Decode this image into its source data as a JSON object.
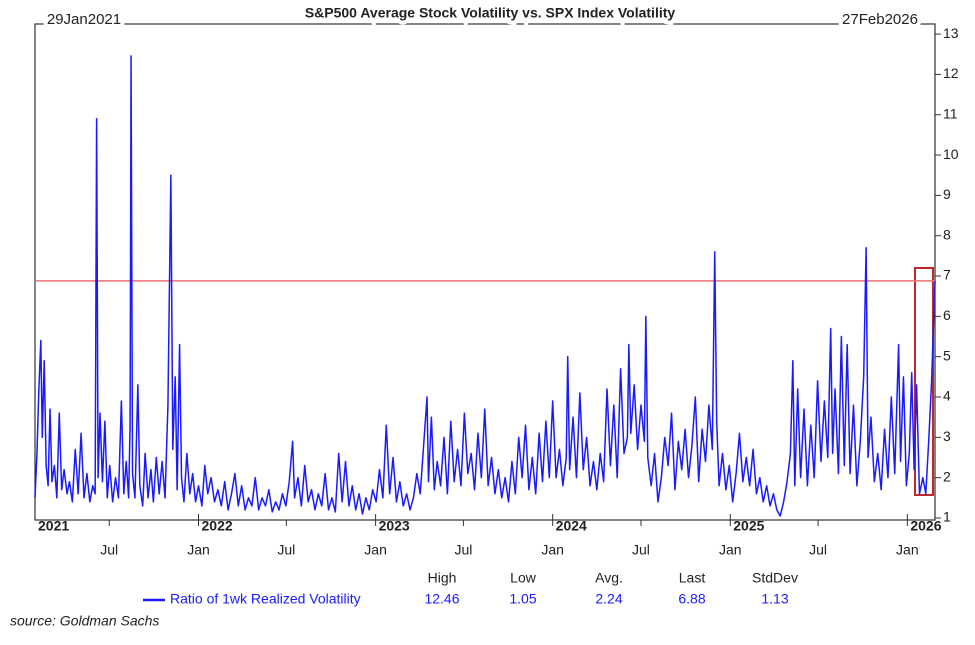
{
  "chart_data": {
    "type": "line",
    "title": "S&P500 Average Stock Volatility vs. SPX Index Volatility",
    "start_label": "29Jan2021",
    "end_label": "27Feb2026",
    "source": "source: Goldman Sachs",
    "xlim": [
      "2021-01-29",
      "2026-02-27"
    ],
    "ylim": [
      0.95,
      13.25
    ],
    "yticks": [
      1,
      2,
      3,
      4,
      5,
      6,
      7,
      8,
      9,
      10,
      11,
      12,
      13
    ],
    "xticks": [
      {
        "value": "2021-07-01",
        "label": "Jul"
      },
      {
        "value": "2022-01-01",
        "label": "Jan"
      },
      {
        "value": "2022-07-01",
        "label": "Jul"
      },
      {
        "value": "2023-01-01",
        "label": "Jan"
      },
      {
        "value": "2023-07-01",
        "label": "Jul"
      },
      {
        "value": "2024-01-01",
        "label": "Jan"
      },
      {
        "value": "2024-07-01",
        "label": "Jul"
      },
      {
        "value": "2025-01-01",
        "label": "Jan"
      },
      {
        "value": "2025-07-01",
        "label": "Jul"
      },
      {
        "value": "2026-01-01",
        "label": "Jan"
      }
    ],
    "year_labels": [
      {
        "value": "2021-01-29",
        "label": "2021"
      },
      {
        "value": "2022-01-01",
        "label": "2022"
      },
      {
        "value": "2023-01-01",
        "label": "2023"
      },
      {
        "value": "2024-01-01",
        "label": "2024"
      },
      {
        "value": "2025-01-01",
        "label": "2025"
      },
      {
        "value": "2026-01-01",
        "label": "2026"
      }
    ],
    "stats": {
      "headers": [
        "High",
        "Low",
        "Avg.",
        "Last",
        "StdDev"
      ],
      "values": [
        12.46,
        1.05,
        2.24,
        6.88,
        1.13
      ]
    },
    "reference_line_color": "#f07070",
    "x": [
      "2021-01-29",
      "2021-02-02",
      "2021-02-06",
      "2021-02-10",
      "2021-02-13",
      "2021-02-17",
      "2021-02-21",
      "2021-02-25",
      "2021-03-01",
      "2021-03-05",
      "2021-03-10",
      "2021-03-15",
      "2021-03-20",
      "2021-03-25",
      "2021-03-30",
      "2021-04-05",
      "2021-04-10",
      "2021-04-16",
      "2021-04-22",
      "2021-04-28",
      "2021-05-04",
      "2021-05-10",
      "2021-05-16",
      "2021-05-22",
      "2021-05-28",
      "2021-06-02",
      "2021-06-05",
      "2021-06-08",
      "2021-06-12",
      "2021-06-17",
      "2021-06-22",
      "2021-06-27",
      "2021-07-02",
      "2021-07-08",
      "2021-07-14",
      "2021-07-20",
      "2021-07-26",
      "2021-07-31",
      "2021-08-05",
      "2021-08-10",
      "2021-08-13",
      "2021-08-15",
      "2021-08-18",
      "2021-08-23",
      "2021-08-29",
      "2021-09-02",
      "2021-09-08",
      "2021-09-13",
      "2021-09-19",
      "2021-09-25",
      "2021-09-30",
      "2021-10-06",
      "2021-10-12",
      "2021-10-18",
      "2021-10-24",
      "2021-10-30",
      "2021-11-05",
      "2021-11-09",
      "2021-11-14",
      "2021-11-18",
      "2021-11-23",
      "2021-11-27",
      "2021-12-02",
      "2021-12-08",
      "2021-12-14",
      "2021-12-20",
      "2021-12-26",
      "2022-01-01",
      "2022-01-08",
      "2022-01-14",
      "2022-01-20",
      "2022-01-27",
      "2022-02-03",
      "2022-02-10",
      "2022-02-17",
      "2022-02-24",
      "2022-03-03",
      "2022-03-10",
      "2022-03-17",
      "2022-03-24",
      "2022-03-31",
      "2022-04-07",
      "2022-04-14",
      "2022-04-21",
      "2022-04-28",
      "2022-05-05",
      "2022-05-12",
      "2022-05-19",
      "2022-05-26",
      "2022-06-02",
      "2022-06-09",
      "2022-06-16",
      "2022-06-23",
      "2022-06-30",
      "2022-07-07",
      "2022-07-14",
      "2022-07-18",
      "2022-07-25",
      "2022-08-01",
      "2022-08-08",
      "2022-08-15",
      "2022-08-22",
      "2022-08-29",
      "2022-09-05",
      "2022-09-12",
      "2022-09-19",
      "2022-09-26",
      "2022-10-03",
      "2022-10-10",
      "2022-10-17",
      "2022-10-24",
      "2022-10-31",
      "2022-11-07",
      "2022-11-14",
      "2022-11-21",
      "2022-11-28",
      "2022-12-05",
      "2022-12-12",
      "2022-12-19",
      "2022-12-26",
      "2023-01-02",
      "2023-01-09",
      "2023-01-16",
      "2023-01-23",
      "2023-01-30",
      "2023-02-06",
      "2023-02-13",
      "2023-02-20",
      "2023-02-27",
      "2023-03-06",
      "2023-03-13",
      "2023-03-20",
      "2023-03-27",
      "2023-04-03",
      "2023-04-10",
      "2023-04-17",
      "2023-04-20",
      "2023-04-26",
      "2023-05-02",
      "2023-05-08",
      "2023-05-15",
      "2023-05-22",
      "2023-05-29",
      "2023-06-05",
      "2023-06-12",
      "2023-06-19",
      "2023-06-26",
      "2023-07-03",
      "2023-07-10",
      "2023-07-17",
      "2023-07-24",
      "2023-07-31",
      "2023-08-07",
      "2023-08-14",
      "2023-08-21",
      "2023-08-28",
      "2023-09-04",
      "2023-09-11",
      "2023-09-18",
      "2023-09-25",
      "2023-10-02",
      "2023-10-09",
      "2023-10-16",
      "2023-10-23",
      "2023-10-30",
      "2023-11-06",
      "2023-11-13",
      "2023-11-20",
      "2023-11-27",
      "2023-12-04",
      "2023-12-11",
      "2023-12-18",
      "2023-12-25",
      "2024-01-01",
      "2024-01-08",
      "2024-01-15",
      "2024-01-22",
      "2024-01-29",
      "2024-02-01",
      "2024-02-05",
      "2024-02-12",
      "2024-02-19",
      "2024-02-26",
      "2024-03-04",
      "2024-03-11",
      "2024-03-18",
      "2024-03-25",
      "2024-04-01",
      "2024-04-08",
      "2024-04-15",
      "2024-04-22",
      "2024-04-29",
      "2024-05-06",
      "2024-05-13",
      "2024-05-20",
      "2024-05-27",
      "2024-06-03",
      "2024-06-06",
      "2024-06-10",
      "2024-06-17",
      "2024-06-24",
      "2024-07-01",
      "2024-07-08",
      "2024-07-11",
      "2024-07-15",
      "2024-07-22",
      "2024-07-29",
      "2024-08-05",
      "2024-08-12",
      "2024-08-19",
      "2024-08-26",
      "2024-09-02",
      "2024-09-09",
      "2024-09-16",
      "2024-09-23",
      "2024-09-30",
      "2024-10-07",
      "2024-10-14",
      "2024-10-21",
      "2024-10-28",
      "2024-11-04",
      "2024-11-11",
      "2024-11-18",
      "2024-11-25",
      "2024-11-30",
      "2024-12-04",
      "2024-12-09",
      "2024-12-16",
      "2024-12-23",
      "2024-12-30",
      "2025-01-06",
      "2025-01-13",
      "2025-01-20",
      "2025-01-27",
      "2025-02-03",
      "2025-02-10",
      "2025-02-17",
      "2025-02-24",
      "2025-03-03",
      "2025-03-10",
      "2025-03-17",
      "2025-03-24",
      "2025-03-31",
      "2025-04-07",
      "2025-04-14",
      "2025-04-21",
      "2025-04-28",
      "2025-05-05",
      "2025-05-10",
      "2025-05-14",
      "2025-05-20",
      "2025-05-26",
      "2025-06-02",
      "2025-06-09",
      "2025-06-16",
      "2025-06-23",
      "2025-06-30",
      "2025-07-07",
      "2025-07-14",
      "2025-07-21",
      "2025-07-27",
      "2025-07-31",
      "2025-08-05",
      "2025-08-12",
      "2025-08-18",
      "2025-08-24",
      "2025-08-30",
      "2025-09-05",
      "2025-09-12",
      "2025-09-19",
      "2025-09-26",
      "2025-10-03",
      "2025-10-08",
      "2025-10-12",
      "2025-10-18",
      "2025-10-25",
      "2025-11-01",
      "2025-11-08",
      "2025-11-15",
      "2025-11-22",
      "2025-11-29",
      "2025-12-06",
      "2025-12-14",
      "2025-12-18",
      "2025-12-24",
      "2025-12-30",
      "2026-01-05",
      "2026-01-10",
      "2026-01-15",
      "2026-01-20",
      "2026-01-26",
      "2026-02-02",
      "2026-02-08",
      "2026-02-14",
      "2026-02-20",
      "2026-02-27"
    ],
    "series": [
      {
        "name": "Ratio of 1wk Realized Volatility",
        "color": "#1a1aff",
        "values": [
          1.5,
          2.6,
          4.2,
          5.4,
          3,
          4.9,
          2.3,
          1.8,
          3.7,
          1.9,
          2.3,
          1.5,
          3.6,
          1.7,
          2.2,
          1.6,
          1.9,
          1.4,
          2.7,
          1.6,
          3.1,
          1.5,
          2.1,
          1.4,
          1.8,
          1.6,
          10.9,
          2,
          3.6,
          1.9,
          3.4,
          1.5,
          2.3,
          1.4,
          2,
          1.5,
          3.9,
          1.6,
          2.4,
          1.5,
          3.3,
          12.46,
          2.1,
          1.5,
          4.3,
          1.8,
          1.3,
          2.6,
          1.5,
          2.2,
          1.4,
          2.5,
          1.6,
          2.4,
          1.5,
          3.8,
          9.5,
          2.7,
          4.5,
          1.7,
          5.3,
          2,
          1.4,
          2.6,
          1.6,
          2.1,
          1.4,
          1.8,
          1.3,
          2.3,
          1.6,
          2,
          1.4,
          1.7,
          1.3,
          1.9,
          1.2,
          1.6,
          2.1,
          1.3,
          1.8,
          1.2,
          1.5,
          1.3,
          2,
          1.2,
          1.5,
          1.3,
          1.7,
          1.15,
          1.4,
          1.2,
          1.6,
          1.3,
          1.9,
          2.9,
          1.5,
          2,
          1.3,
          2.3,
          1.4,
          1.7,
          1.2,
          1.6,
          1.3,
          2.1,
          1.2,
          1.5,
          1.15,
          2.6,
          1.4,
          2.4,
          1.3,
          1.8,
          1.2,
          1.6,
          1.1,
          1.5,
          1.2,
          1.7,
          1.4,
          2.2,
          1.5,
          3.3,
          1.6,
          2.5,
          1.4,
          1.9,
          1.3,
          1.6,
          1.2,
          1.5,
          2.1,
          1.6,
          2.8,
          4,
          1.9,
          3.5,
          1.7,
          2.4,
          1.8,
          3,
          1.6,
          3.4,
          1.9,
          2.7,
          1.8,
          3.6,
          2.1,
          2.6,
          1.7,
          3.1,
          2,
          3.7,
          1.8,
          2.5,
          1.6,
          2.2,
          1.5,
          2,
          1.4,
          2.4,
          1.6,
          3,
          2,
          3.3,
          1.7,
          2.5,
          1.6,
          3.1,
          1.9,
          3.4,
          2,
          3.9,
          2,
          2.7,
          1.8,
          2.5,
          5,
          2.2,
          3.5,
          2,
          4.1,
          2.2,
          3,
          1.8,
          2.4,
          1.7,
          2.6,
          1.9,
          4.2,
          2.3,
          3.8,
          2,
          4.7,
          2.6,
          3,
          5.3,
          3.1,
          4.3,
          2.7,
          3.8,
          2.9,
          6,
          2.5,
          1.8,
          2.6,
          1.4,
          2,
          3,
          2.3,
          3.6,
          1.7,
          2.9,
          2.2,
          3.2,
          2,
          2.8,
          4,
          1.9,
          3.2,
          2.4,
          3.8,
          2.7,
          7.6,
          3.4,
          1.8,
          2.6,
          1.7,
          2.3,
          1.4,
          2.1,
          3.1,
          1.9,
          2.5,
          1.8,
          2.7,
          1.6,
          2,
          1.4,
          1.8,
          1.3,
          1.6,
          1.2,
          1.05,
          1.4,
          1.9,
          2.6,
          4.9,
          1.8,
          4.2,
          2,
          3.7,
          1.8,
          3.3,
          2,
          4.4,
          2.4,
          3.9,
          2.5,
          5.7,
          2.6,
          4.2,
          2.1,
          5.5,
          2.3,
          5.3,
          2.1,
          3.8,
          1.8,
          2.9,
          4.5,
          7.7,
          2.5,
          3.5,
          1.9,
          2.6,
          1.7,
          3.2,
          2,
          4,
          2.1,
          5.3,
          2.4,
          4.5,
          1.8,
          2.6,
          4.6,
          2.2,
          4.3,
          1.6,
          2,
          1.6,
          2.9,
          4.4,
          6.88
        ]
      }
    ]
  }
}
